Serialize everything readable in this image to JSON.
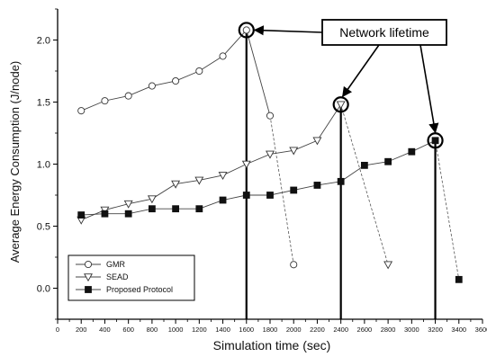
{
  "chart_data": {
    "type": "line",
    "xlabel": "Simulation time (sec)",
    "ylabel": "Average Energy Consumption (J/node)",
    "xlim": [
      0,
      3600
    ],
    "ylim": [
      -0.25,
      2.25
    ],
    "x_ticks": [
      0,
      200,
      400,
      600,
      800,
      1000,
      1200,
      1400,
      1600,
      1800,
      2000,
      2200,
      2400,
      2600,
      2800,
      3000,
      3200,
      3400,
      3600
    ],
    "y_ticks": [
      0.0,
      0.5,
      1.0,
      1.5,
      2.0
    ],
    "y_tick_labels": [
      "0.0",
      "0.5",
      "1.0",
      "1.5",
      "2.0"
    ],
    "grid": false,
    "legend_position": "bottom-left",
    "series": [
      {
        "name": "GMR",
        "marker": "circle-open",
        "x": [
          200,
          400,
          600,
          800,
          1000,
          1200,
          1400,
          1600,
          1800,
          2000
        ],
        "y": [
          1.43,
          1.51,
          1.55,
          1.63,
          1.67,
          1.75,
          1.87,
          2.08,
          1.39,
          0.19
        ]
      },
      {
        "name": "SEAD",
        "marker": "triangle-down-open",
        "x": [
          200,
          400,
          600,
          800,
          1000,
          1200,
          1400,
          1600,
          1800,
          2000,
          2200,
          2400,
          2800
        ],
        "y": [
          0.55,
          0.63,
          0.68,
          0.72,
          0.84,
          0.87,
          0.91,
          1.0,
          1.08,
          1.11,
          1.19,
          1.48,
          0.19
        ]
      },
      {
        "name": "Proposed Protocol",
        "marker": "square-filled",
        "x": [
          200,
          400,
          600,
          800,
          1000,
          1200,
          1400,
          1600,
          1800,
          2000,
          2200,
          2400,
          2600,
          2800,
          3000,
          3200,
          3400
        ],
        "y": [
          0.59,
          0.6,
          0.6,
          0.64,
          0.64,
          0.64,
          0.71,
          0.75,
          0.75,
          0.79,
          0.83,
          0.86,
          0.99,
          1.02,
          1.1,
          1.19,
          0.07
        ]
      }
    ],
    "annotation": {
      "text": "Network lifetime",
      "targets": [
        {
          "x": 1600,
          "y": 2.08
        },
        {
          "x": 2400,
          "y": 1.48
        },
        {
          "x": 3200,
          "y": 1.19
        }
      ]
    }
  }
}
